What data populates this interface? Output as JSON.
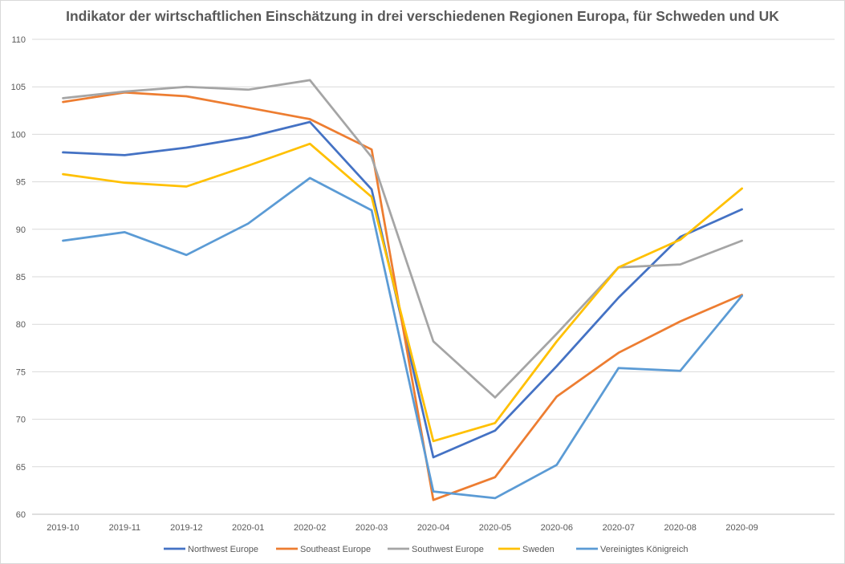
{
  "chart_data": {
    "type": "line",
    "title": "Indikator der wirtschaftlichen Einschätzung in drei verschiedenen Regionen Europa, für Schweden und UK",
    "xlabel": "",
    "ylabel": "",
    "ylim": [
      60,
      110
    ],
    "ytick_step": 5,
    "grid": true,
    "legend_position": "bottom",
    "categories": [
      "2019-10",
      "2019-11",
      "2019-12",
      "2020-01",
      "2020-02",
      "2020-03",
      "2020-04",
      "2020-05",
      "2020-06",
      "2020-07",
      "2020-08",
      "2020-09"
    ],
    "series": [
      {
        "name": "Northwest Europe",
        "color": "#4472c4",
        "values": [
          98.1,
          97.8,
          98.6,
          99.7,
          101.3,
          94.2,
          66.0,
          68.8,
          75.6,
          82.8,
          89.2,
          92.1
        ]
      },
      {
        "name": "Southeast Europe",
        "color": "#ed7d31",
        "values": [
          103.4,
          104.4,
          104.0,
          102.8,
          101.6,
          98.4,
          61.5,
          63.9,
          72.4,
          77.0,
          80.3,
          83.1
        ]
      },
      {
        "name": "Southwest Europe",
        "color": "#a5a5a5",
        "values": [
          103.8,
          104.5,
          105.0,
          104.7,
          105.7,
          97.6,
          78.2,
          72.3,
          79.0,
          86.0,
          86.3,
          88.8
        ]
      },
      {
        "name": "Sweden",
        "color": "#ffc000",
        "values": [
          95.8,
          94.9,
          94.5,
          96.7,
          99.0,
          93.4,
          67.7,
          69.6,
          78.2,
          86.0,
          88.9,
          94.3
        ]
      },
      {
        "name": "Vereinigtes Königreich",
        "color": "#5b9bd5",
        "values": [
          88.8,
          89.7,
          87.3,
          90.6,
          95.4,
          92.0,
          62.4,
          61.7,
          65.2,
          75.4,
          75.1,
          83.0
        ]
      }
    ]
  }
}
